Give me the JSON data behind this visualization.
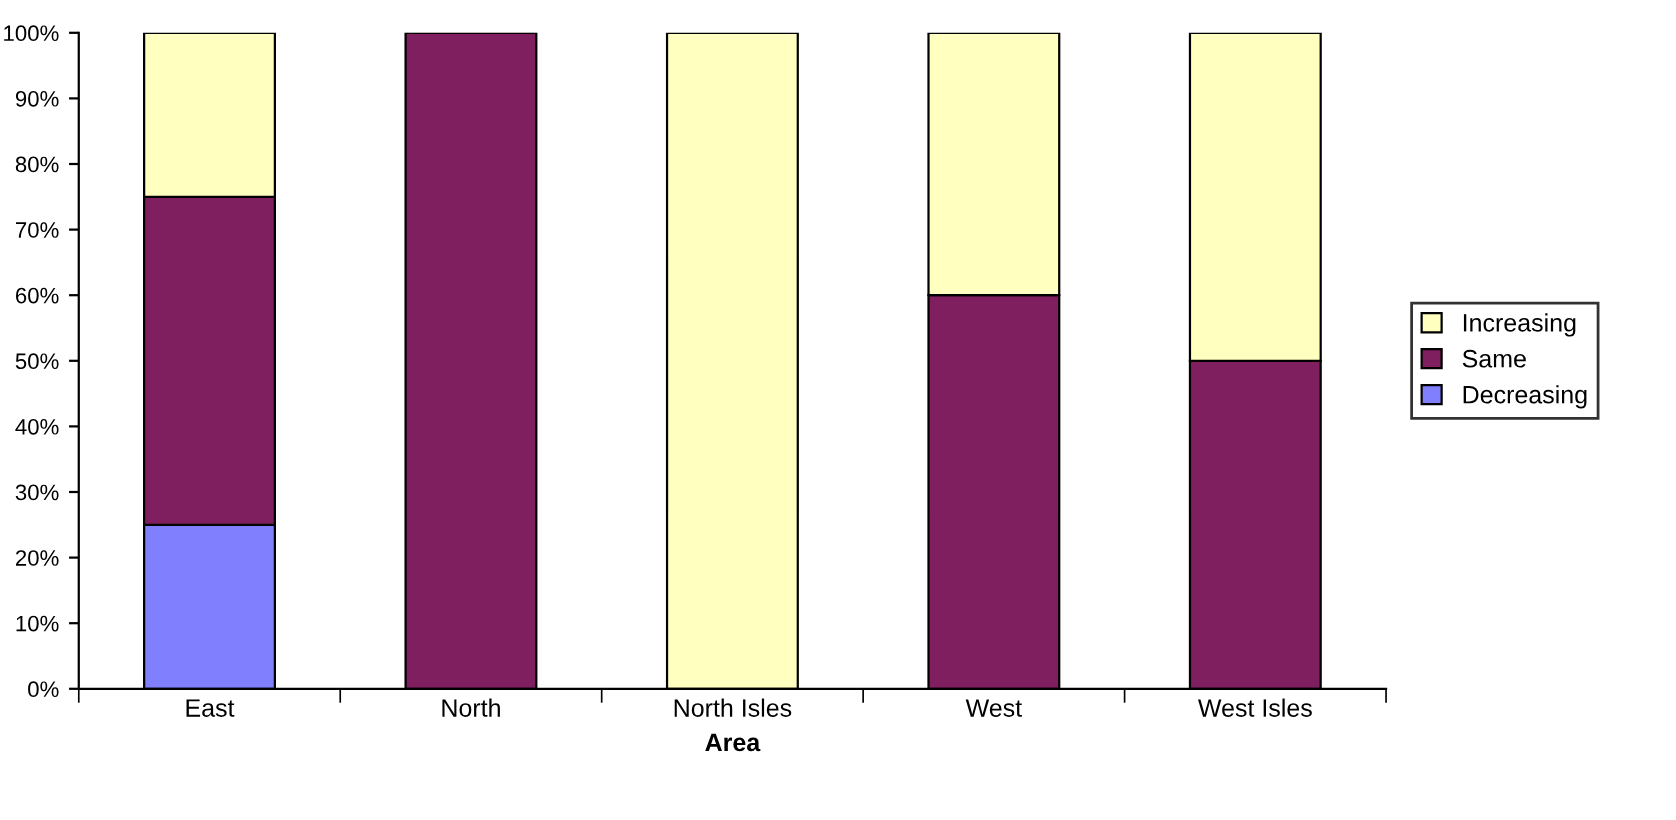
{
  "chart_data": {
    "type": "bar",
    "stacked": true,
    "xlabel": "Area",
    "categories": [
      "East",
      "North",
      "North Isles",
      "West",
      "West Isles"
    ],
    "series": [
      {
        "name": "Decreasing",
        "color": "#8080ff",
        "values": [
          25,
          0,
          0,
          0,
          0
        ]
      },
      {
        "name": "Same",
        "color": "#801f5f",
        "values": [
          50,
          100,
          0,
          60,
          50
        ]
      },
      {
        "name": "Increasing",
        "color": "#ffffc0",
        "values": [
          25,
          0,
          100,
          40,
          50
        ]
      }
    ],
    "ylim": [
      0,
      100
    ],
    "yticks": [
      {
        "value": 0,
        "label": "0%"
      },
      {
        "value": 10,
        "label": "10%"
      },
      {
        "value": 20,
        "label": "20%"
      },
      {
        "value": 30,
        "label": "30%"
      },
      {
        "value": 40,
        "label": "40%"
      },
      {
        "value": 50,
        "label": "50%"
      },
      {
        "value": 60,
        "label": "60%"
      },
      {
        "value": 70,
        "label": "70%"
      },
      {
        "value": 80,
        "label": "80%"
      },
      {
        "value": 90,
        "label": "90%"
      },
      {
        "value": 100,
        "label": "100%"
      }
    ],
    "grid": false,
    "legend": "right"
  }
}
